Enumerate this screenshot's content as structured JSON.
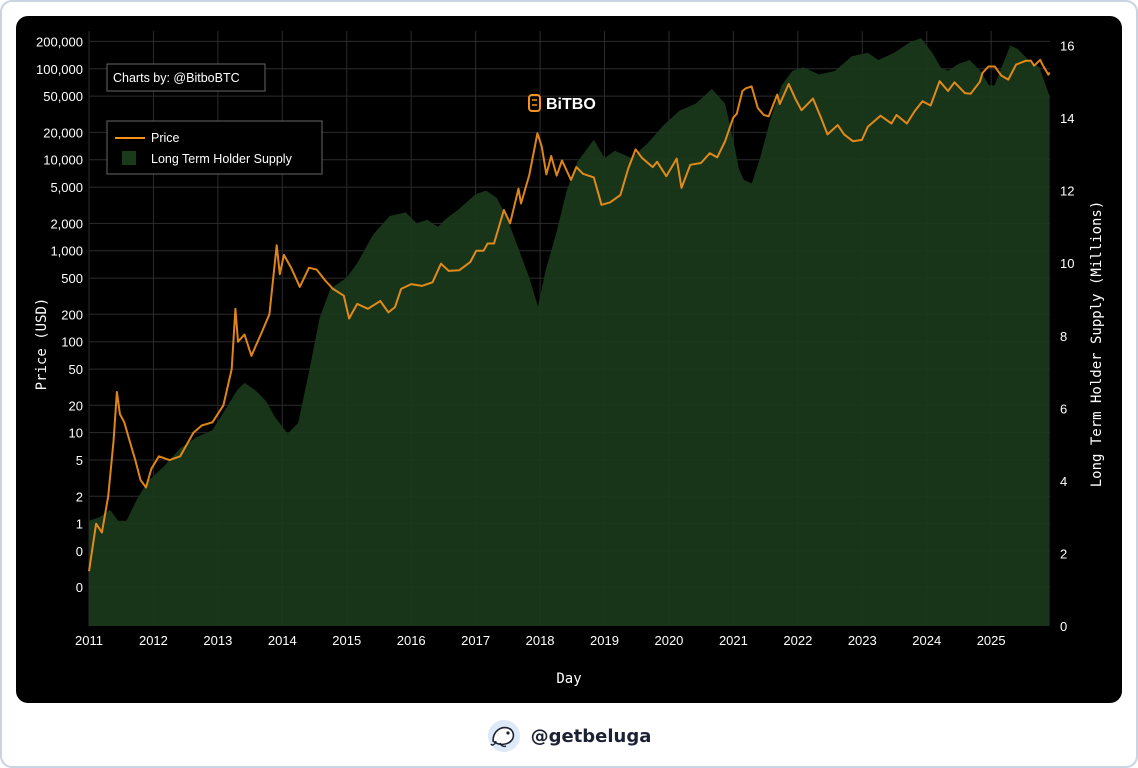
{
  "chart_data": {
    "type": "line+area",
    "xlabel": "Day",
    "ylabel_left": "Price (USD)",
    "ylabel_right": "Long Term Holder Supply (Millions)",
    "x_ticks": [
      "2011",
      "2012",
      "2013",
      "2014",
      "2015",
      "2016",
      "2017",
      "2018",
      "2019",
      "2020",
      "2021",
      "2022",
      "2023",
      "2024",
      "2025"
    ],
    "y_left_scale": "log",
    "y_left_ticks": [
      "200,000",
      "100,000",
      "50,000",
      "20,000",
      "10,000",
      "5,000",
      "2,000",
      "1,000",
      "500",
      "200",
      "100",
      "50",
      "20",
      "10",
      "5",
      "2",
      "1",
      "0",
      "0"
    ],
    "y_right_ticks": [
      "16",
      "14",
      "12",
      "10",
      "8",
      "6",
      "4",
      "2",
      "0"
    ],
    "y_right_range": [
      0,
      16.4
    ],
    "grid": true,
    "legend_placement": "top-left",
    "series": [
      {
        "name": "Price",
        "color": "#f7931a",
        "axis": "left",
        "points": [
          [
            "2011-01-01",
            0.3
          ],
          [
            "2011-02-10",
            1.0
          ],
          [
            "2011-03-15",
            0.8
          ],
          [
            "2011-04-20",
            2.0
          ],
          [
            "2011-05-20",
            8.0
          ],
          [
            "2011-06-08",
            28.0
          ],
          [
            "2011-06-25",
            16.0
          ],
          [
            "2011-07-20",
            13.0
          ],
          [
            "2011-08-20",
            8.0
          ],
          [
            "2011-09-20",
            5.0
          ],
          [
            "2011-10-20",
            3.0
          ],
          [
            "2011-11-20",
            2.5
          ],
          [
            "2011-12-20",
            4.0
          ],
          [
            "2012-02-01",
            5.5
          ],
          [
            "2012-04-01",
            5.0
          ],
          [
            "2012-06-01",
            5.5
          ],
          [
            "2012-08-15",
            10.0
          ],
          [
            "2012-10-01",
            12.0
          ],
          [
            "2012-12-01",
            13.0
          ],
          [
            "2013-02-01",
            20.0
          ],
          [
            "2013-03-20",
            50.0
          ],
          [
            "2013-04-10",
            230.0
          ],
          [
            "2013-04-25",
            100.0
          ],
          [
            "2013-06-01",
            120.0
          ],
          [
            "2013-07-10",
            70.0
          ],
          [
            "2013-09-01",
            120.0
          ],
          [
            "2013-10-20",
            200.0
          ],
          [
            "2013-11-30",
            1150.0
          ],
          [
            "2013-12-18",
            550.0
          ],
          [
            "2014-01-10",
            900.0
          ],
          [
            "2014-02-20",
            650.0
          ],
          [
            "2014-04-10",
            400.0
          ],
          [
            "2014-06-01",
            650.0
          ],
          [
            "2014-07-15",
            620.0
          ],
          [
            "2014-09-01",
            470.0
          ],
          [
            "2014-10-15",
            380.0
          ],
          [
            "2014-12-15",
            320.0
          ],
          [
            "2015-01-14",
            180.0
          ],
          [
            "2015-03-01",
            260.0
          ],
          [
            "2015-05-01",
            230.0
          ],
          [
            "2015-07-10",
            280.0
          ],
          [
            "2015-08-25",
            210.0
          ],
          [
            "2015-10-01",
            240.0
          ],
          [
            "2015-11-05",
            380.0
          ],
          [
            "2016-01-01",
            430.0
          ],
          [
            "2016-03-01",
            410.0
          ],
          [
            "2016-05-01",
            450.0
          ],
          [
            "2016-06-18",
            720.0
          ],
          [
            "2016-08-01",
            600.0
          ],
          [
            "2016-10-01",
            610.0
          ],
          [
            "2016-12-01",
            750.0
          ],
          [
            "2017-01-05",
            1000.0
          ],
          [
            "2017-02-15",
            1000.0
          ],
          [
            "2017-03-10",
            1200.0
          ],
          [
            "2017-04-15",
            1200.0
          ],
          [
            "2017-06-10",
            2800.0
          ],
          [
            "2017-07-15",
            2000.0
          ],
          [
            "2017-09-01",
            4800.0
          ],
          [
            "2017-09-15",
            3300.0
          ],
          [
            "2017-11-01",
            6800.0
          ],
          [
            "2017-12-17",
            19500.0
          ],
          [
            "2018-01-10",
            14000.0
          ],
          [
            "2018-02-06",
            6900.0
          ],
          [
            "2018-03-05",
            11000.0
          ],
          [
            "2018-04-05",
            6700.0
          ],
          [
            "2018-05-05",
            9800.0
          ],
          [
            "2018-06-25",
            6000.0
          ],
          [
            "2018-07-25",
            8300.0
          ],
          [
            "2018-09-01",
            7000.0
          ],
          [
            "2018-11-01",
            6400.0
          ],
          [
            "2018-12-15",
            3200.0
          ],
          [
            "2019-02-01",
            3400.0
          ],
          [
            "2019-04-01",
            4100.0
          ],
          [
            "2019-05-15",
            8000.0
          ],
          [
            "2019-06-26",
            13000.0
          ],
          [
            "2019-08-01",
            10500.0
          ],
          [
            "2019-10-01",
            8300.0
          ],
          [
            "2019-10-26",
            9500.0
          ],
          [
            "2019-12-17",
            6600.0
          ],
          [
            "2020-02-14",
            10300.0
          ],
          [
            "2020-03-12",
            4900.0
          ],
          [
            "2020-05-01",
            8800.0
          ],
          [
            "2020-07-01",
            9200.0
          ],
          [
            "2020-08-20",
            11800.0
          ],
          [
            "2020-10-01",
            10600.0
          ],
          [
            "2020-11-15",
            16000.0
          ],
          [
            "2020-12-31",
            29000.0
          ],
          [
            "2021-01-20",
            32000.0
          ],
          [
            "2021-02-21",
            57000.0
          ],
          [
            "2021-03-13",
            61000.0
          ],
          [
            "2021-04-14",
            64000.0
          ],
          [
            "2021-05-19",
            37000.0
          ],
          [
            "2021-06-22",
            31000.0
          ],
          [
            "2021-07-20",
            30000.0
          ],
          [
            "2021-09-06",
            52000.0
          ],
          [
            "2021-09-21",
            41000.0
          ],
          [
            "2021-11-10",
            68000.0
          ],
          [
            "2021-12-20",
            46000.0
          ],
          [
            "2022-01-22",
            35000.0
          ],
          [
            "2022-03-28",
            47000.0
          ],
          [
            "2022-05-12",
            29000.0
          ],
          [
            "2022-06-18",
            19000.0
          ],
          [
            "2022-08-15",
            24000.0
          ],
          [
            "2022-09-20",
            19000.0
          ],
          [
            "2022-11-09",
            16000.0
          ],
          [
            "2022-12-30",
            16500.0
          ],
          [
            "2023-02-01",
            23000.0
          ],
          [
            "2023-04-14",
            30500.0
          ],
          [
            "2023-06-15",
            25000.0
          ],
          [
            "2023-07-14",
            31000.0
          ],
          [
            "2023-09-11",
            25000.0
          ],
          [
            "2023-10-24",
            34000.0
          ],
          [
            "2023-12-08",
            44000.0
          ],
          [
            "2024-01-23",
            39500.0
          ],
          [
            "2024-03-14",
            73000.0
          ],
          [
            "2024-05-01",
            57000.0
          ],
          [
            "2024-06-07",
            71000.0
          ],
          [
            "2024-08-05",
            54000.0
          ],
          [
            "2024-09-06",
            53000.0
          ],
          [
            "2024-10-29",
            72000.0
          ],
          [
            "2024-11-13",
            90000.0
          ],
          [
            "2024-12-17",
            106000.0
          ],
          [
            "2025-01-21",
            106000.0
          ],
          [
            "2025-02-28",
            84000.0
          ],
          [
            "2025-04-08",
            76000.0
          ],
          [
            "2025-05-22",
            111000.0
          ],
          [
            "2025-07-14",
            122000.0
          ],
          [
            "2025-08-14",
            123000.0
          ],
          [
            "2025-09-01",
            108000.0
          ],
          [
            "2025-10-06",
            125000.0
          ],
          [
            "2025-10-20",
            110000.0
          ],
          [
            "2025-11-21",
            86000.0
          ],
          [
            "2025-11-28",
            91000.0
          ]
        ]
      },
      {
        "name": "Long Term Holder Supply",
        "color": "#1a3a1c",
        "axis": "right",
        "points": [
          [
            "2011-01-01",
            2.9
          ],
          [
            "2011-03-01",
            3.0
          ],
          [
            "2011-05-01",
            3.2
          ],
          [
            "2011-06-15",
            2.9
          ],
          [
            "2011-08-01",
            2.9
          ],
          [
            "2011-10-01",
            3.5
          ],
          [
            "2011-12-01",
            4.0
          ],
          [
            "2012-03-01",
            4.4
          ],
          [
            "2012-06-01",
            4.9
          ],
          [
            "2012-09-01",
            5.2
          ],
          [
            "2012-12-01",
            5.4
          ],
          [
            "2013-03-01",
            6.1
          ],
          [
            "2013-04-20",
            6.5
          ],
          [
            "2013-06-01",
            6.7
          ],
          [
            "2013-08-01",
            6.5
          ],
          [
            "2013-10-01",
            6.2
          ],
          [
            "2013-11-15",
            5.8
          ],
          [
            "2013-12-31",
            5.5
          ],
          [
            "2014-02-01",
            5.3
          ],
          [
            "2014-04-01",
            5.6
          ],
          [
            "2014-06-01",
            7.0
          ],
          [
            "2014-08-01",
            8.5
          ],
          [
            "2014-10-01",
            9.3
          ],
          [
            "2014-12-31",
            9.6
          ],
          [
            "2015-03-01",
            10.0
          ],
          [
            "2015-06-01",
            10.8
          ],
          [
            "2015-09-01",
            11.3
          ],
          [
            "2015-12-01",
            11.4
          ],
          [
            "2016-02-01",
            11.1
          ],
          [
            "2016-04-01",
            11.2
          ],
          [
            "2016-06-01",
            11.0
          ],
          [
            "2016-07-10",
            11.2
          ],
          [
            "2016-10-01",
            11.5
          ],
          [
            "2016-12-31",
            11.9
          ],
          [
            "2017-03-01",
            12.0
          ],
          [
            "2017-05-01",
            11.8
          ],
          [
            "2017-07-01",
            11.2
          ],
          [
            "2017-09-01",
            10.4
          ],
          [
            "2017-11-01",
            9.6
          ],
          [
            "2017-12-20",
            8.8
          ],
          [
            "2018-02-01",
            9.8
          ],
          [
            "2018-04-01",
            10.8
          ],
          [
            "2018-06-01",
            12.0
          ],
          [
            "2018-08-01",
            12.8
          ],
          [
            "2018-11-01",
            13.4
          ],
          [
            "2019-01-01",
            12.9
          ],
          [
            "2019-03-01",
            13.1
          ],
          [
            "2019-06-01",
            12.9
          ],
          [
            "2019-09-01",
            13.3
          ],
          [
            "2019-12-01",
            13.8
          ],
          [
            "2020-03-01",
            14.2
          ],
          [
            "2020-06-01",
            14.4
          ],
          [
            "2020-09-01",
            14.8
          ],
          [
            "2020-11-15",
            14.4
          ],
          [
            "2020-12-31",
            13.4
          ],
          [
            "2021-02-01",
            12.6
          ],
          [
            "2021-03-01",
            12.3
          ],
          [
            "2021-04-15",
            12.2
          ],
          [
            "2021-06-01",
            12.9
          ],
          [
            "2021-08-01",
            14.0
          ],
          [
            "2021-10-01",
            14.9
          ],
          [
            "2021-12-01",
            15.3
          ],
          [
            "2022-02-01",
            15.4
          ],
          [
            "2022-05-01",
            15.2
          ],
          [
            "2022-08-01",
            15.3
          ],
          [
            "2022-11-01",
            15.7
          ],
          [
            "2023-02-01",
            15.8
          ],
          [
            "2023-04-01",
            15.6
          ],
          [
            "2023-07-01",
            15.8
          ],
          [
            "2023-10-01",
            16.1
          ],
          [
            "2023-12-01",
            16.2
          ],
          [
            "2024-02-01",
            15.8
          ],
          [
            "2024-03-20",
            15.4
          ],
          [
            "2024-05-01",
            15.3
          ],
          [
            "2024-07-01",
            15.5
          ],
          [
            "2024-09-01",
            15.6
          ],
          [
            "2024-11-01",
            15.3
          ],
          [
            "2024-12-20",
            14.9
          ],
          [
            "2025-01-20",
            14.9
          ],
          [
            "2025-03-01",
            15.4
          ],
          [
            "2025-04-20",
            16.0
          ],
          [
            "2025-06-01",
            15.9
          ],
          [
            "2025-08-01",
            15.6
          ],
          [
            "2025-10-01",
            15.4
          ],
          [
            "2025-11-28",
            14.6
          ]
        ]
      }
    ]
  },
  "annotation": {
    "text": "Charts by: @BitboBTC"
  },
  "watermark": {
    "text": "BiTBO"
  },
  "legend": {
    "price_label": "Price",
    "lth_label": "Long Term Holder Supply"
  },
  "footer": {
    "handle": "@getbeluga"
  }
}
